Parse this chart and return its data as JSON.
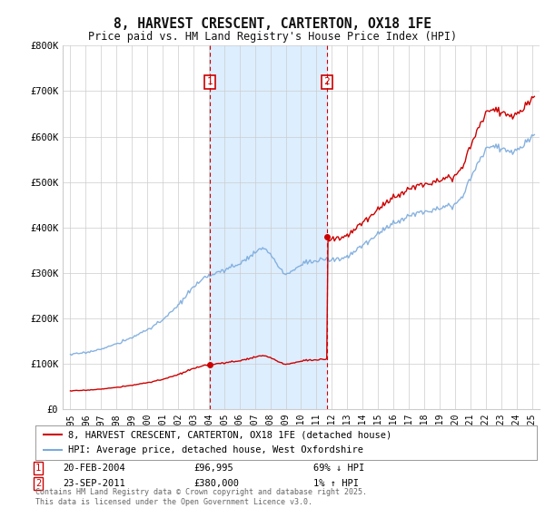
{
  "title": "8, HARVEST CRESCENT, CARTERTON, OX18 1FE",
  "subtitle": "Price paid vs. HM Land Registry's House Price Index (HPI)",
  "background_color": "#ffffff",
  "plot_bg_color": "#ffffff",
  "grid_color": "#cccccc",
  "hpi_color": "#7aaadd",
  "price_color": "#cc0000",
  "shade_color": "#ddeeff",
  "sale1_date": 2004.083,
  "sale1_price": 96995,
  "sale2_date": 2011.667,
  "sale2_price": 380000,
  "ylim": [
    0,
    800000
  ],
  "xlim": [
    1994.5,
    2025.5
  ],
  "yticks": [
    0,
    100000,
    200000,
    300000,
    400000,
    500000,
    600000,
    700000,
    800000
  ],
  "ytick_labels": [
    "£0",
    "£100K",
    "£200K",
    "£300K",
    "£400K",
    "£500K",
    "£600K",
    "£700K",
    "£800K"
  ],
  "xticks": [
    1995,
    1996,
    1997,
    1998,
    1999,
    2000,
    2001,
    2002,
    2003,
    2004,
    2005,
    2006,
    2007,
    2008,
    2009,
    2010,
    2011,
    2012,
    2013,
    2014,
    2015,
    2016,
    2017,
    2018,
    2019,
    2020,
    2021,
    2022,
    2023,
    2024,
    2025
  ],
  "legend1_label": "8, HARVEST CRESCENT, CARTERTON, OX18 1FE (detached house)",
  "legend2_label": "HPI: Average price, detached house, West Oxfordshire",
  "note1_num": "1",
  "note1_date": "20-FEB-2004",
  "note1_price": "£96,995",
  "note1_hpi": "69% ↓ HPI",
  "note2_num": "2",
  "note2_date": "23-SEP-2011",
  "note2_price": "£380,000",
  "note2_hpi": "1% ↑ HPI",
  "footer": "Contains HM Land Registry data © Crown copyright and database right 2025.\nThis data is licensed under the Open Government Licence v3.0.",
  "hpi_seed": 17,
  "price_seed": 42
}
